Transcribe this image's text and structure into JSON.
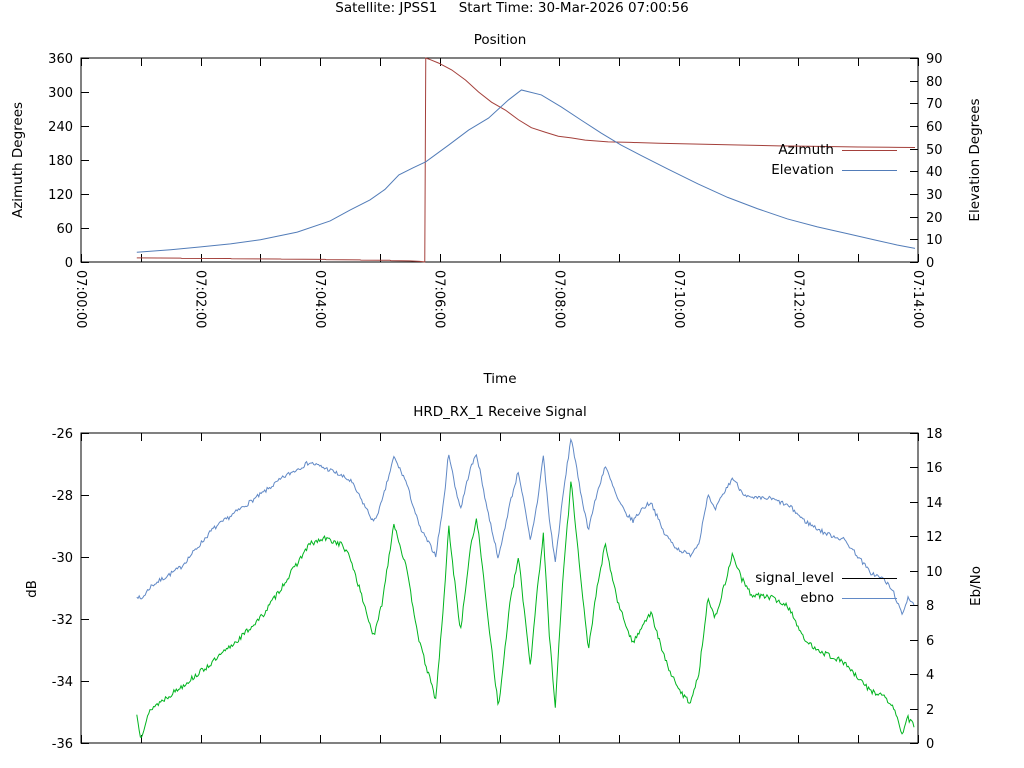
{
  "header": {
    "satellite_label": "Satellite: JPSS1",
    "start_time_label": "Start Time: 30-Mar-2026 07:00:56",
    "title_line": "Satellite: JPSS1     Start Time: 30-Mar-2026 07:00:56"
  },
  "colors": {
    "azimuth": "#a4403b",
    "elevation": "#527cb8",
    "signal_level": "#00b41e",
    "ebno": "#6189c6",
    "signal_legend_sample": "#000000",
    "axis": "#000000",
    "background": "#ffffff"
  },
  "chart_data": [
    {
      "type": "line",
      "title": "Position",
      "xlabel": "Time",
      "ylabel_left": "Azimuth Degrees",
      "ylabel_right": "Elevation Degrees",
      "x_range_seconds": [
        0,
        840
      ],
      "x_tick_step_seconds": 60,
      "x_label_step_seconds": 120,
      "x_tick_labels": [
        "07:00:00",
        "07:02:00",
        "07:04:00",
        "07:06:00",
        "07:08:00",
        "07:10:00",
        "07:12:00",
        "07:14:00"
      ],
      "x_labels_visible": true,
      "y_left": {
        "range": [
          0,
          360
        ],
        "ticks": [
          0,
          60,
          120,
          180,
          240,
          300,
          360
        ]
      },
      "y_right": {
        "range": [
          0,
          90
        ],
        "ticks": [
          0,
          10,
          20,
          30,
          40,
          50,
          60,
          70,
          80,
          90
        ]
      },
      "grid": false,
      "legend_position": "right-middle",
      "legend": [
        {
          "label": "Azimuth",
          "sample_color": "#a4403b"
        },
        {
          "label": "Elevation",
          "sample_color": "#527cb8"
        }
      ],
      "series": [
        {
          "name": "Azimuth",
          "axis": "left",
          "color": "#a4403b",
          "noise_amp": 0,
          "points": [
            [
              56,
              7.3
            ],
            [
              100,
              6.9
            ],
            [
              101,
              6.5
            ],
            [
              150,
              6.2
            ],
            [
              151,
              5.8
            ],
            [
              200,
              5.4
            ],
            [
              201,
              5.0
            ],
            [
              245,
              4.6
            ],
            [
              246,
              4.2
            ],
            [
              280,
              3.8
            ],
            [
              281,
              3.4
            ],
            [
              310,
              3.0
            ],
            [
              311,
              2.5
            ],
            [
              330,
              2.0
            ],
            [
              340,
              1.2
            ],
            [
              345,
              0.2
            ],
            [
              346,
              359.8
            ],
            [
              350,
              357.5
            ],
            [
              359,
              351
            ],
            [
              372,
              339
            ],
            [
              386,
              321
            ],
            [
              399,
              300
            ],
            [
              412,
              282
            ],
            [
              426,
              268
            ],
            [
              439,
              251
            ],
            [
              452,
              237
            ],
            [
              466,
              229
            ],
            [
              479,
              222
            ],
            [
              492,
              219
            ],
            [
              506,
              215
            ],
            [
              529,
              212
            ],
            [
              552,
              211
            ],
            [
              580,
              209.5
            ],
            [
              620,
              208
            ],
            [
              660,
              206.5
            ],
            [
              700,
              205
            ],
            [
              740,
              204
            ],
            [
              780,
              203
            ],
            [
              820,
              202.3
            ],
            [
              837,
              202
            ]
          ]
        },
        {
          "name": "Elevation",
          "axis": "right",
          "color": "#527cb8",
          "noise_amp": 0,
          "points": [
            [
              56,
              4.3
            ],
            [
              90,
              5.4
            ],
            [
              119,
              6.6
            ],
            [
              150,
              8.0
            ],
            [
              180,
              9.8
            ],
            [
              217,
              13.2
            ],
            [
              250,
              18.1
            ],
            [
              270,
              22.9
            ],
            [
              290,
              27.4
            ],
            [
              305,
              32.0
            ],
            [
              319,
              38.4
            ],
            [
              333,
              41.5
            ],
            [
              346,
              44.2
            ],
            [
              369,
              51.6
            ],
            [
              389,
              58.2
            ],
            [
              409,
              63.5
            ],
            [
              429,
              71.5
            ],
            [
              442,
              75.9
            ],
            [
              462,
              73.7
            ],
            [
              482,
              68.4
            ],
            [
              502,
              62.6
            ],
            [
              522,
              56.9
            ],
            [
              542,
              51.6
            ],
            [
              562,
              47.0
            ],
            [
              589,
              41.0
            ],
            [
              619,
              34.5
            ],
            [
              649,
              28.5
            ],
            [
              679,
              23.5
            ],
            [
              709,
              19.0
            ],
            [
              739,
              15.5
            ],
            [
              769,
              12.5
            ],
            [
              799,
              9.5
            ],
            [
              819,
              7.5
            ],
            [
              837,
              6.0
            ]
          ]
        }
      ]
    },
    {
      "type": "line",
      "title": "HRD_RX_1 Receive Signal",
      "xlabel": "",
      "ylabel_left": "dB",
      "ylabel_right": "Eb/No",
      "x_range_seconds": [
        0,
        840
      ],
      "x_tick_step_seconds": 60,
      "x_labels_visible": false,
      "y_left": {
        "range": [
          -36,
          -26
        ],
        "ticks": [
          -36,
          -34,
          -32,
          -30,
          -28,
          -26
        ]
      },
      "y_right": {
        "range": [
          0,
          18
        ],
        "ticks": [
          0,
          2,
          4,
          6,
          8,
          10,
          12,
          14,
          16,
          18
        ]
      },
      "grid": false,
      "legend_position": "right-middle",
      "legend": [
        {
          "label": "signal_level",
          "sample_color": "#000000"
        },
        {
          "label": "ebno",
          "sample_color": "#6189c6"
        }
      ],
      "series": [
        {
          "name": "signal_level",
          "axis": "left",
          "color": "#00b41e",
          "noise_amp": 0.09,
          "noise_seed": 13,
          "sample_dt": 1.2,
          "points": [
            [
              56,
              -35.1
            ],
            [
              60,
              -35.8
            ],
            [
              70,
              -34.9
            ],
            [
              100,
              -34.2
            ],
            [
              132,
              -33.4
            ],
            [
              160,
              -32.6
            ],
            [
              182,
              -31.9
            ],
            [
              205,
              -30.8
            ],
            [
              229,
              -29.6
            ],
            [
              245,
              -29.4
            ],
            [
              262,
              -29.6
            ],
            [
              271,
              -30.1
            ],
            [
              294,
              -32.6
            ],
            [
              302,
              -31.5
            ],
            [
              314,
              -28.9
            ],
            [
              326,
              -30.3
            ],
            [
              340,
              -32.8
            ],
            [
              356,
              -34.6
            ],
            [
              364,
              -31.5
            ],
            [
              369,
              -29.0
            ],
            [
              375,
              -30.8
            ],
            [
              381,
              -32.4
            ],
            [
              390,
              -29.9
            ],
            [
              397,
              -28.7
            ],
            [
              408,
              -31.8
            ],
            [
              419,
              -34.9
            ],
            [
              430,
              -31.6
            ],
            [
              439,
              -30.0
            ],
            [
              451,
              -33.5
            ],
            [
              458,
              -31.0
            ],
            [
              464,
              -29.3
            ],
            [
              470,
              -32.5
            ],
            [
              476,
              -34.8
            ],
            [
              484,
              -30.5
            ],
            [
              492,
              -27.5
            ],
            [
              500,
              -30.2
            ],
            [
              509,
              -33.0
            ],
            [
              518,
              -31.0
            ],
            [
              526,
              -29.6
            ],
            [
              539,
              -31.5
            ],
            [
              547,
              -32.2
            ],
            [
              554,
              -32.8
            ],
            [
              563,
              -32.2
            ],
            [
              572,
              -31.8
            ],
            [
              585,
              -33.2
            ],
            [
              598,
              -34.2
            ],
            [
              611,
              -34.7
            ],
            [
              620,
              -33.8
            ],
            [
              629,
              -31.3
            ],
            [
              636,
              -32.0
            ],
            [
              645,
              -31.0
            ],
            [
              654,
              -29.9
            ],
            [
              663,
              -30.7
            ],
            [
              672,
              -31.2
            ],
            [
              692,
              -31.3
            ],
            [
              705,
              -31.5
            ],
            [
              712,
              -31.7
            ],
            [
              726,
              -32.7
            ],
            [
              746,
              -33.1
            ],
            [
              766,
              -33.4
            ],
            [
              779,
              -33.9
            ],
            [
              792,
              -34.3
            ],
            [
              806,
              -34.5
            ],
            [
              816,
              -34.9
            ],
            [
              824,
              -35.7
            ],
            [
              830,
              -35.2
            ],
            [
              837,
              -35.5
            ]
          ]
        },
        {
          "name": "ebno",
          "axis": "right",
          "color": "#6189c6",
          "noise_amp": 0.13,
          "noise_seed": 7,
          "sample_dt": 1.2,
          "points": [
            [
              56,
              8.6
            ],
            [
              60,
              8.3
            ],
            [
              70,
              9.1
            ],
            [
              100,
              10.2
            ],
            [
              132,
              12.4
            ],
            [
              160,
              13.6
            ],
            [
              182,
              14.5
            ],
            [
              205,
              15.5
            ],
            [
              229,
              16.3
            ],
            [
              252,
              15.8
            ],
            [
              271,
              15.2
            ],
            [
              294,
              12.8
            ],
            [
              302,
              14.0
            ],
            [
              314,
              16.6
            ],
            [
              326,
              15.2
            ],
            [
              340,
              12.5
            ],
            [
              356,
              10.9
            ],
            [
              364,
              14.0
            ],
            [
              369,
              16.9
            ],
            [
              375,
              15.0
            ],
            [
              381,
              13.6
            ],
            [
              390,
              15.8
            ],
            [
              397,
              16.8
            ],
            [
              408,
              13.5
            ],
            [
              419,
              10.7
            ],
            [
              430,
              13.8
            ],
            [
              439,
              15.8
            ],
            [
              451,
              11.7
            ],
            [
              458,
              14.0
            ],
            [
              464,
              16.7
            ],
            [
              470,
              13.0
            ],
            [
              476,
              10.5
            ],
            [
              484,
              14.5
            ],
            [
              492,
              17.8
            ],
            [
              500,
              15.0
            ],
            [
              509,
              12.4
            ],
            [
              518,
              14.5
            ],
            [
              526,
              16.1
            ],
            [
              539,
              14.1
            ],
            [
              547,
              13.3
            ],
            [
              554,
              12.9
            ],
            [
              563,
              13.6
            ],
            [
              572,
              14.0
            ],
            [
              585,
              12.2
            ],
            [
              598,
              11.3
            ],
            [
              611,
              10.9
            ],
            [
              620,
              11.6
            ],
            [
              629,
              14.4
            ],
            [
              636,
              13.5
            ],
            [
              645,
              14.5
            ],
            [
              654,
              15.4
            ],
            [
              663,
              14.6
            ],
            [
              672,
              14.2
            ],
            [
              692,
              14.2
            ],
            [
              705,
              13.9
            ],
            [
              712,
              13.7
            ],
            [
              726,
              12.9
            ],
            [
              746,
              12.2
            ],
            [
              766,
              11.8
            ],
            [
              779,
              10.9
            ],
            [
              792,
              9.9
            ],
            [
              806,
              9.5
            ],
            [
              816,
              8.7
            ],
            [
              824,
              7.4
            ],
            [
              830,
              8.5
            ],
            [
              837,
              8.0
            ]
          ]
        }
      ]
    }
  ]
}
